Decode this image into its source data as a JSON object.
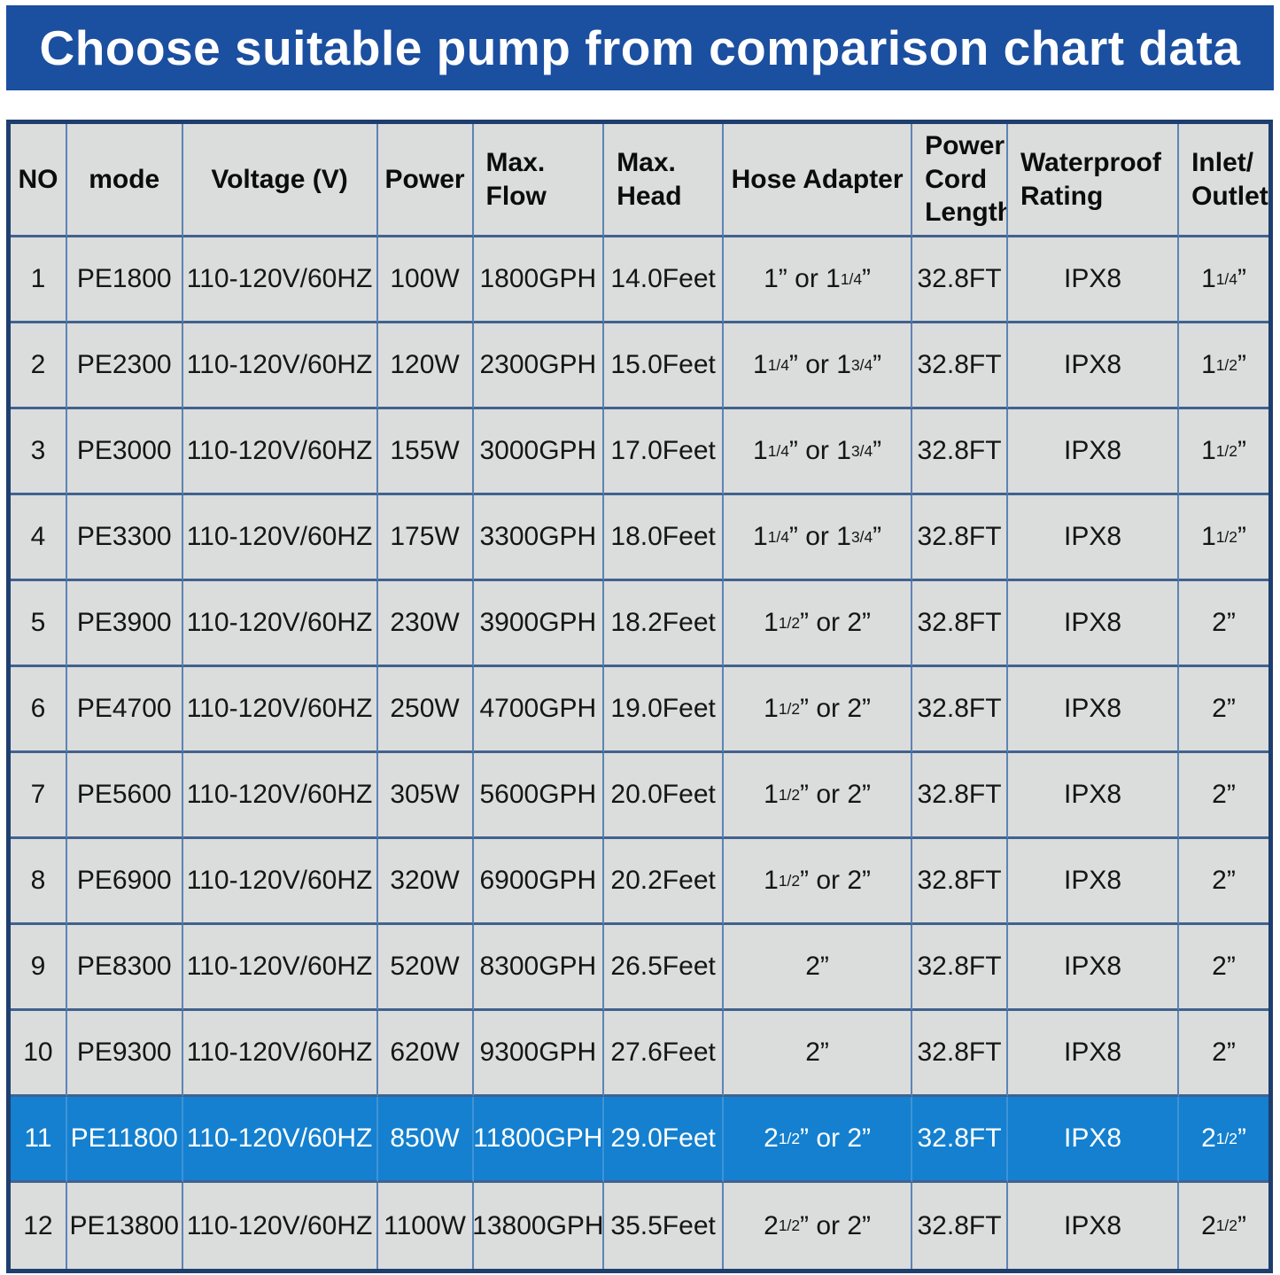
{
  "banner": {
    "title": "Choose suitable pump from comparison chart data",
    "background": "#1b4fa0",
    "text_color": "#ffffff"
  },
  "table": {
    "highlight_row_number": "11",
    "colors": {
      "cell_background": "#dbdcdc",
      "highlight_background": "#1480cf",
      "grid_line": "#5b85b5",
      "outer_border": "#1e3e6e",
      "text": "#151515",
      "highlight_text": "#ffffff"
    },
    "columns": [
      {
        "key": "no",
        "label": "NO",
        "width": "4.5%",
        "align": "center"
      },
      {
        "key": "mode",
        "label": "mode",
        "width": "9.2%",
        "align": "center"
      },
      {
        "key": "voltage",
        "label": "Voltage (V)",
        "width": "15.5%",
        "align": "center"
      },
      {
        "key": "power",
        "label": "Power",
        "width": "7.6%",
        "align": "center"
      },
      {
        "key": "flow",
        "label": "Max.\nFlow",
        "width": "10.4%",
        "align": "left"
      },
      {
        "key": "head",
        "label": "Max.\nHead",
        "width": "9.5%",
        "align": "left"
      },
      {
        "key": "hose",
        "label": "Hose Adapter",
        "width": "15.0%",
        "align": "center"
      },
      {
        "key": "cord",
        "label": "Power\nCord\nLength",
        "width": "7.6%",
        "align": "left"
      },
      {
        "key": "waterproof",
        "label": "Waterproof\nRating",
        "width": "13.6%",
        "align": "left"
      },
      {
        "key": "inlet",
        "label": "Inlet/\nOutlet",
        "width": "7.1%",
        "align": "left"
      }
    ],
    "rows": [
      {
        "no": "1",
        "mode": "PE1800",
        "voltage": "110-120V/60HZ",
        "power": "100W",
        "flow": "1800GPH",
        "head": "14.0Feet",
        "hose": "1” or 1~1/4~”",
        "cord": "32.8FT",
        "waterproof": "IPX8",
        "inlet": "1~1/4~”",
        "highlight": false
      },
      {
        "no": "2",
        "mode": "PE2300",
        "voltage": "110-120V/60HZ",
        "power": "120W",
        "flow": "2300GPH",
        "head": "15.0Feet",
        "hose": "1~1/4~” or 1~3/4~”",
        "cord": "32.8FT",
        "waterproof": "IPX8",
        "inlet": "1~1/2~”",
        "highlight": false
      },
      {
        "no": "3",
        "mode": "PE3000",
        "voltage": "110-120V/60HZ",
        "power": "155W",
        "flow": "3000GPH",
        "head": "17.0Feet",
        "hose": "1~1/4~” or 1~3/4~”",
        "cord": "32.8FT",
        "waterproof": "IPX8",
        "inlet": "1~1/2~”",
        "highlight": false
      },
      {
        "no": "4",
        "mode": "PE3300",
        "voltage": "110-120V/60HZ",
        "power": "175W",
        "flow": "3300GPH",
        "head": "18.0Feet",
        "hose": "1~1/4~” or 1~3/4~”",
        "cord": "32.8FT",
        "waterproof": "IPX8",
        "inlet": "1~1/2~”",
        "highlight": false
      },
      {
        "no": "5",
        "mode": "PE3900",
        "voltage": "110-120V/60HZ",
        "power": "230W",
        "flow": "3900GPH",
        "head": "18.2Feet",
        "hose": "1~1/2~” or 2”",
        "cord": "32.8FT",
        "waterproof": "IPX8",
        "inlet": "2”",
        "highlight": false
      },
      {
        "no": "6",
        "mode": "PE4700",
        "voltage": "110-120V/60HZ",
        "power": "250W",
        "flow": "4700GPH",
        "head": "19.0Feet",
        "hose": "1~1/2~” or 2”",
        "cord": "32.8FT",
        "waterproof": "IPX8",
        "inlet": "2”",
        "highlight": false
      },
      {
        "no": "7",
        "mode": "PE5600",
        "voltage": "110-120V/60HZ",
        "power": "305W",
        "flow": "5600GPH",
        "head": "20.0Feet",
        "hose": "1~1/2~” or 2”",
        "cord": "32.8FT",
        "waterproof": "IPX8",
        "inlet": "2”",
        "highlight": false
      },
      {
        "no": "8",
        "mode": "PE6900",
        "voltage": "110-120V/60HZ",
        "power": "320W",
        "flow": "6900GPH",
        "head": "20.2Feet",
        "hose": "1~1/2~” or 2”",
        "cord": "32.8FT",
        "waterproof": "IPX8",
        "inlet": "2”",
        "highlight": false
      },
      {
        "no": "9",
        "mode": "PE8300",
        "voltage": "110-120V/60HZ",
        "power": "520W",
        "flow": "8300GPH",
        "head": "26.5Feet",
        "hose": "2”",
        "cord": "32.8FT",
        "waterproof": "IPX8",
        "inlet": "2”",
        "highlight": false
      },
      {
        "no": "10",
        "mode": "PE9300",
        "voltage": "110-120V/60HZ",
        "power": "620W",
        "flow": "9300GPH",
        "head": "27.6Feet",
        "hose": "2”",
        "cord": "32.8FT",
        "waterproof": "IPX8",
        "inlet": "2”",
        "highlight": false
      },
      {
        "no": "11",
        "mode": "PE11800",
        "voltage": "110-120V/60HZ",
        "power": "850W",
        "flow": "11800GPH",
        "head": "29.0Feet",
        "hose": "2~1/2~” or 2”",
        "cord": "32.8FT",
        "waterproof": "IPX8",
        "inlet": "2~1/2~”",
        "highlight": true
      },
      {
        "no": "12",
        "mode": "PE13800",
        "voltage": "110-120V/60HZ",
        "power": "1100W",
        "flow": "13800GPH",
        "head": "35.5Feet",
        "hose": "2~1/2~” or 2”",
        "cord": "32.8FT",
        "waterproof": "IPX8",
        "inlet": "2~1/2~”",
        "highlight": false
      }
    ]
  }
}
